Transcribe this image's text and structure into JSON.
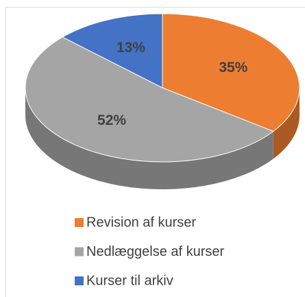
{
  "chart_data": {
    "type": "pie3d",
    "categories": [
      "Revision af kurser",
      "Nedlæggelse af kurser",
      "Kurser til arkiv"
    ],
    "values": [
      35,
      52,
      13
    ],
    "value_labels": [
      "35%",
      "52%",
      "13%"
    ],
    "colors": [
      "#ed7d31",
      "#a5a5a5",
      "#4472c4"
    ],
    "legend": "bottom"
  }
}
